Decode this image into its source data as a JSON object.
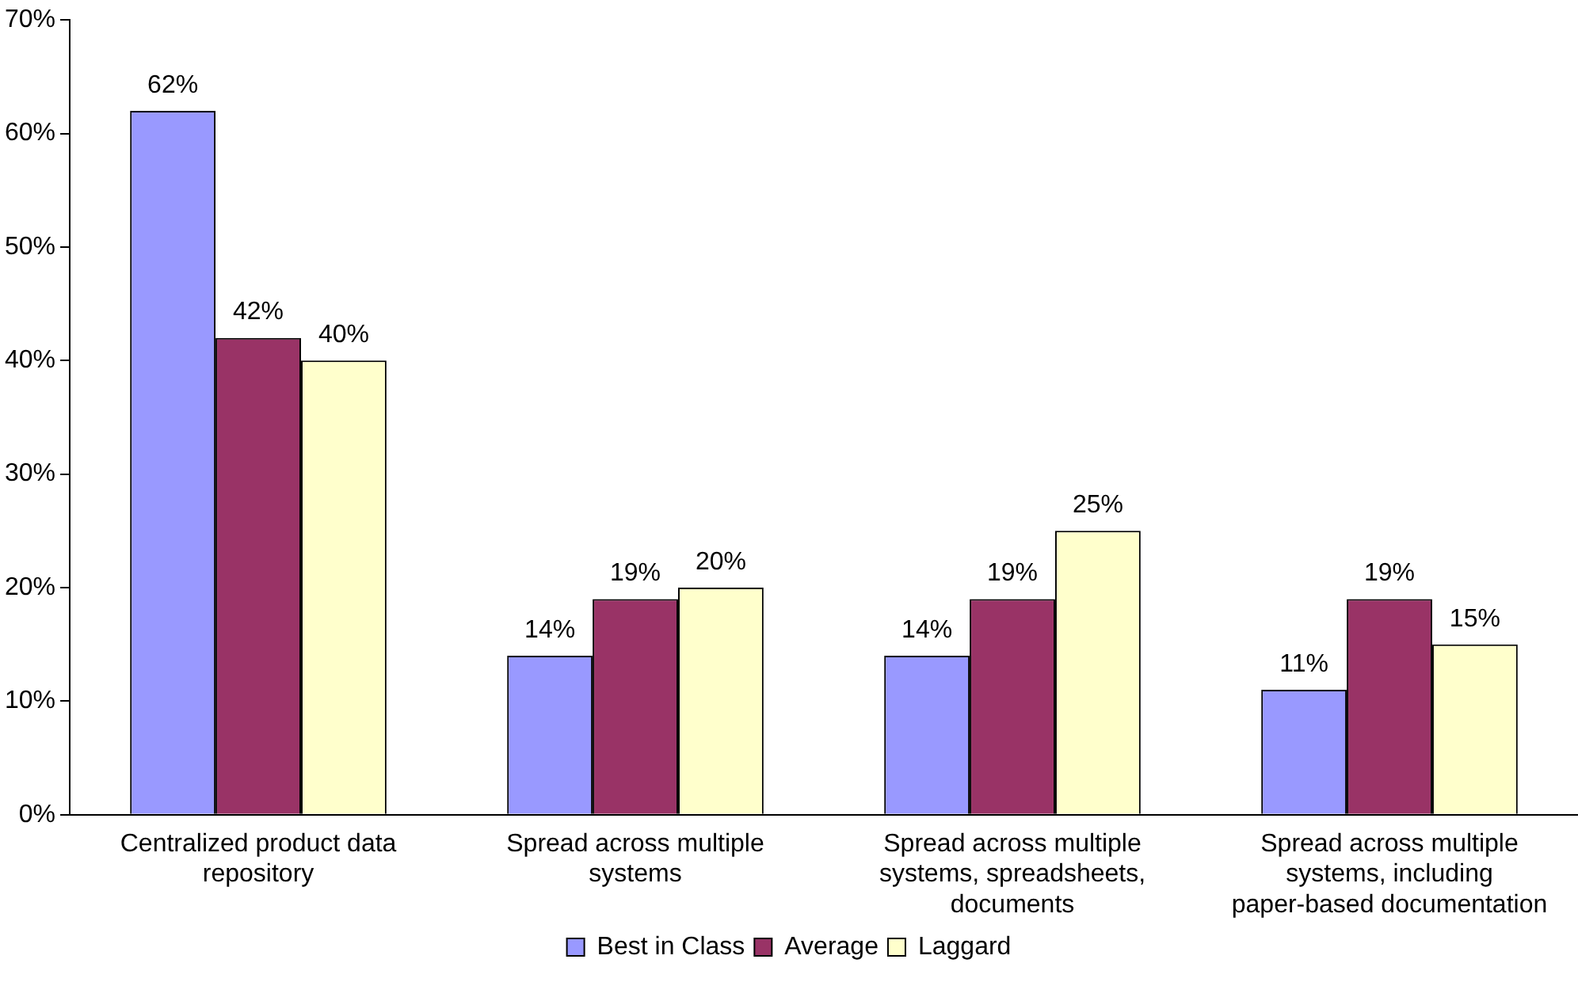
{
  "chart_data": {
    "type": "bar",
    "categories": [
      "Centralized product data repository",
      "Spread across multiple systems",
      "Spread across multiple systems, spreadsheets, documents",
      "Spread across multiple systems, including paper-based documentation"
    ],
    "series": [
      {
        "name": "Best in Class",
        "color": "#9999ff",
        "values": [
          62,
          14,
          14,
          11
        ]
      },
      {
        "name": "Average",
        "color": "#993366",
        "values": [
          42,
          19,
          19,
          19
        ]
      },
      {
        "name": "Laggard",
        "color": "#ffffcc",
        "values": [
          40,
          20,
          25,
          15
        ]
      }
    ],
    "ylim": [
      0,
      70
    ],
    "yticks": [
      {
        "value": 0,
        "label": "0%"
      },
      {
        "value": 10,
        "label": "10%"
      },
      {
        "value": 20,
        "label": "20%"
      },
      {
        "value": 30,
        "label": "30%"
      },
      {
        "value": 40,
        "label": "40%"
      },
      {
        "value": 50,
        "label": "50%"
      },
      {
        "value": 60,
        "label": "60%"
      },
      {
        "value": 70,
        "label": "70%"
      }
    ],
    "value_labels": [
      [
        "62%",
        "14%",
        "14%",
        "11%"
      ],
      [
        "42%",
        "19%",
        "19%",
        "19%"
      ],
      [
        "40%",
        "20%",
        "25%",
        "15%"
      ]
    ],
    "grid": false,
    "legend": "bottom"
  }
}
